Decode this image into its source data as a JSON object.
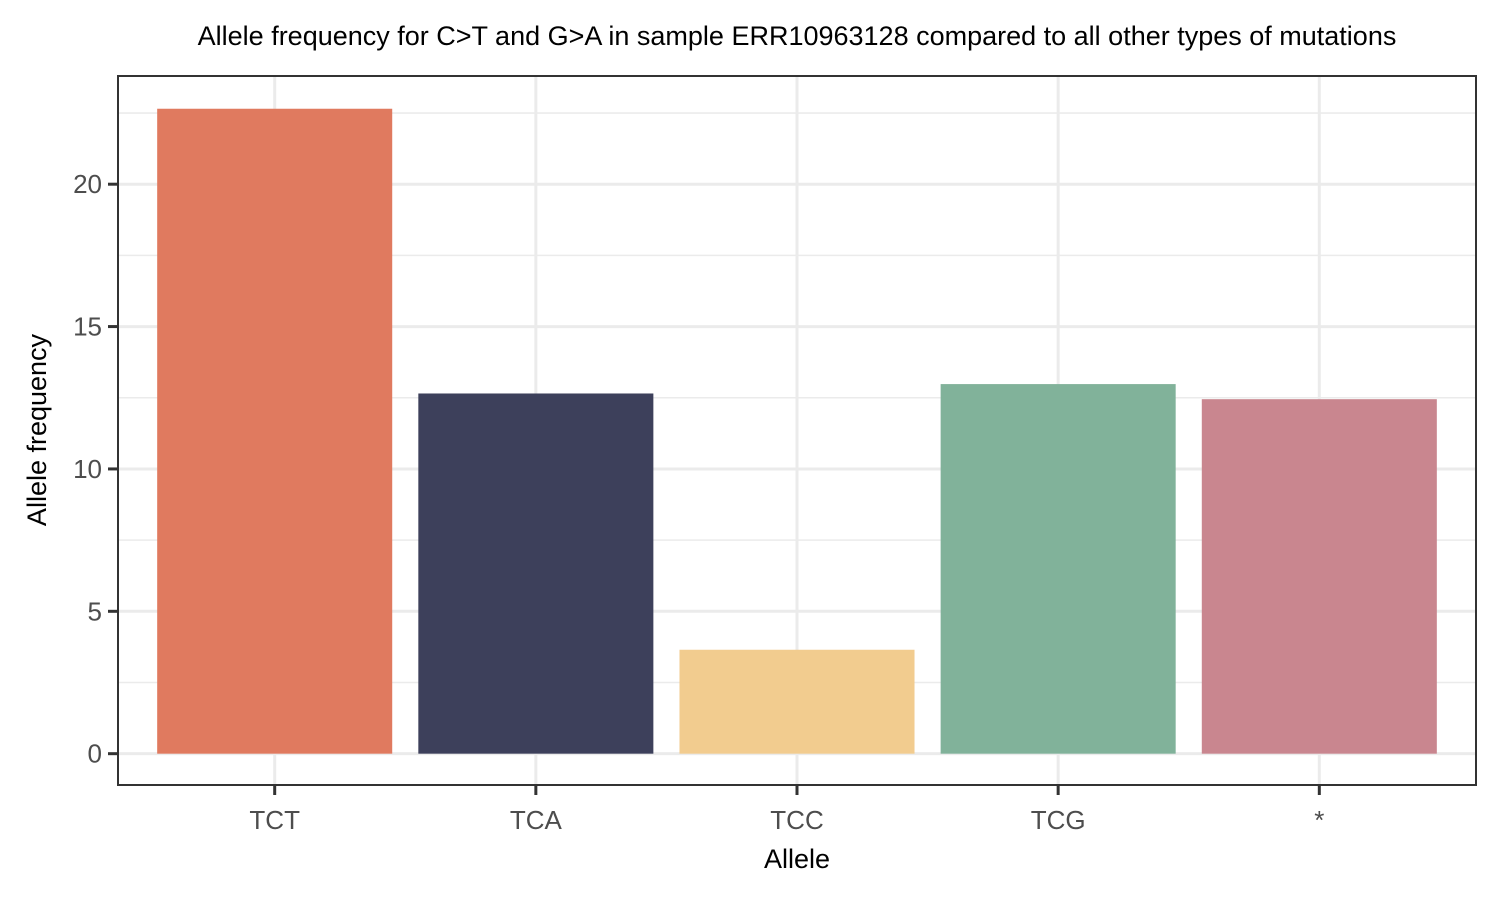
{
  "chart_data": {
    "type": "bar",
    "title": "Allele frequency for C>T and G>A in sample ERR10963128 compared to all other types of mutations",
    "xlabel": "Allele",
    "ylabel": "Allele frequency",
    "categories": [
      "TCT",
      "TCA",
      "TCC",
      "TCG",
      "*"
    ],
    "values": [
      22.65,
      12.65,
      3.65,
      12.98,
      12.45
    ],
    "colors": [
      "#E07A5F",
      "#3D405B",
      "#F2CC8F",
      "#81B29A",
      "#C9868F"
    ],
    "ylim": [
      -1.1,
      23.8
    ],
    "yticks": [
      0,
      5,
      10,
      15,
      20
    ],
    "yticks_minor": [
      2.5,
      7.5,
      12.5,
      17.5,
      22.5
    ],
    "grid": true,
    "legend": "none",
    "theme": {
      "major_grid_color": "#ebebeb",
      "border_color": "#333333",
      "tick_label_color": "#4d4d4d"
    }
  }
}
